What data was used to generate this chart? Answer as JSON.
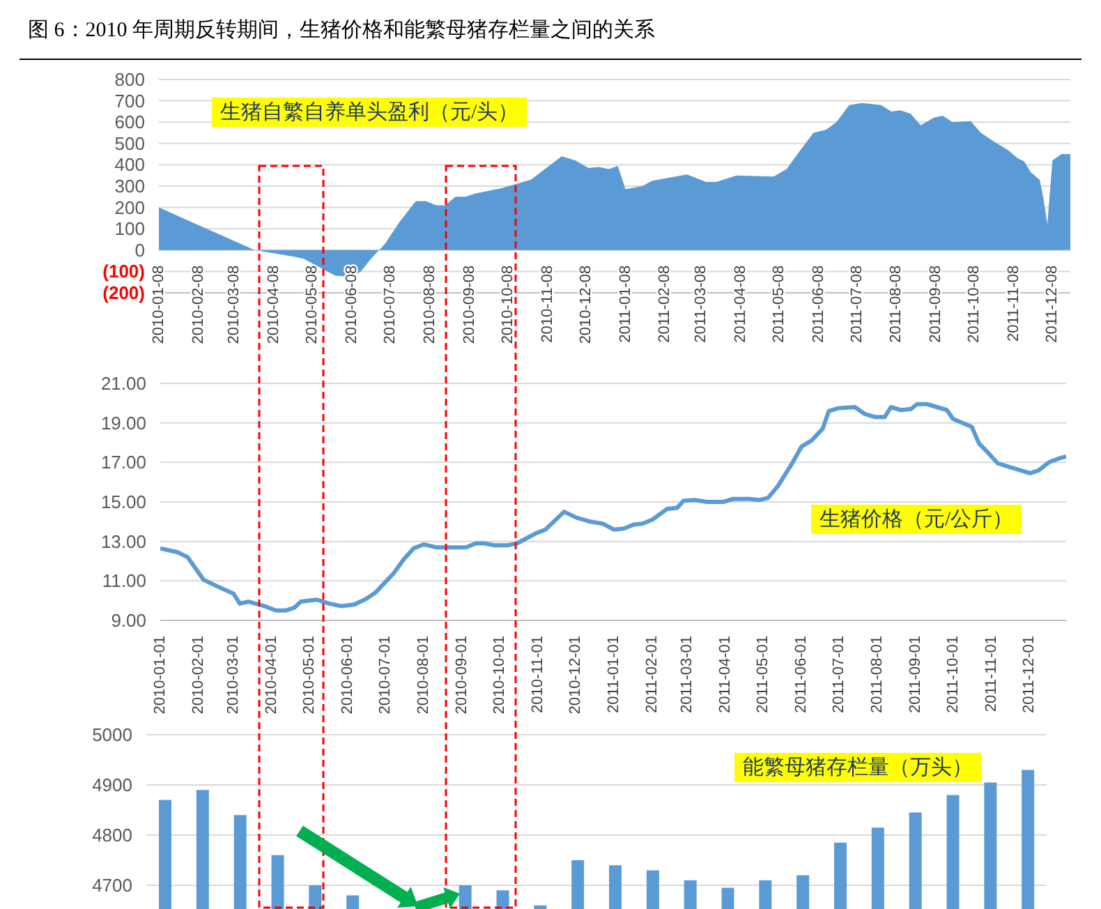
{
  "chart_data": [
    {
      "type": "area",
      "title": "图 6：2010 年周期反转期间，生猪价格和能繁母猪存栏量之间的关系",
      "x": [
        "2010-01-08",
        "2010-03-24",
        "2010-04-23",
        "2010-05-01",
        "2010-05-26",
        "2010-06-07",
        "2010-06-15",
        "2010-06-23",
        "2010-07-04",
        "2010-07-15",
        "2010-07-28",
        "2010-08-05",
        "2010-08-13",
        "2010-08-20",
        "2010-08-28",
        "2010-09-05",
        "2010-09-12",
        "2010-10-03",
        "2010-10-26",
        "2010-11-19",
        "2010-11-30",
        "2010-12-10",
        "2010-12-18",
        "2010-12-26",
        "2011-01-02",
        "2011-01-08",
        "2011-01-21",
        "2011-01-29",
        "2011-02-25",
        "2011-03-12",
        "2011-03-20",
        "2011-04-05",
        "2011-05-04",
        "2011-05-14",
        "2011-05-25",
        "2011-06-04",
        "2011-06-14",
        "2011-06-22",
        "2011-07-02",
        "2011-07-12",
        "2011-07-27",
        "2011-08-04",
        "2011-08-11",
        "2011-08-19",
        "2011-08-27",
        "2011-09-06",
        "2011-09-13",
        "2011-09-21",
        "2011-10-05",
        "2011-10-13",
        "2011-10-23",
        "2011-11-03",
        "2011-11-11",
        "2011-11-16",
        "2011-11-21",
        "2011-11-26",
        "2011-11-28",
        "2011-12-01",
        "2011-12-04",
        "2011-12-08",
        "2011-12-15",
        "2011-12-22"
      ],
      "series": [
        {
          "name": "生猪自繁自养单头盈利（元/头）",
          "color": "#5b9bd5",
          "values": [
            200,
            0,
            -30,
            -40,
            -120,
            -125,
            -100,
            -40,
            30,
            130,
            230,
            230,
            210,
            210,
            250,
            250,
            265,
            290,
            330,
            440,
            420,
            385,
            390,
            380,
            395,
            285,
            300,
            325,
            355,
            320,
            320,
            350,
            345,
            380,
            470,
            550,
            565,
            600,
            680,
            690,
            680,
            650,
            655,
            640,
            585,
            620,
            630,
            600,
            605,
            550,
            510,
            470,
            430,
            415,
            365,
            340,
            330,
            240,
            120,
            420,
            450,
            450
          ]
        }
      ],
      "xlim": [
        "2010-01-08",
        "2011-12-22"
      ],
      "xticks": [
        "2010-01-08",
        "2010-02-08",
        "2010-03-08",
        "2010-04-08",
        "2010-05-08",
        "2010-06-08",
        "2010-07-08",
        "2010-08-08",
        "2010-09-08",
        "2010-10-08",
        "2010-11-08",
        "2010-12-08",
        "2011-01-08",
        "2011-02-08",
        "2011-03-08",
        "2011-04-08",
        "2011-05-08",
        "2011-06-08",
        "2011-07-08",
        "2011-08-08",
        "2011-09-08",
        "2011-10-08",
        "2011-11-08",
        "2011-12-08"
      ],
      "ylim": [
        -200,
        800
      ],
      "yticks": [
        {
          "value": -200,
          "label": "(200)"
        },
        {
          "value": -100,
          "label": "(100)"
        },
        0,
        100,
        200,
        300,
        400,
        500,
        600,
        700,
        800
      ],
      "grid": "y"
    },
    {
      "type": "line",
      "x": [
        "2010-01-01",
        "2010-01-15",
        "2010-01-23",
        "2010-02-05",
        "2010-02-15",
        "2010-03-01",
        "2010-03-06",
        "2010-03-13",
        "2010-03-27",
        "2010-04-04",
        "2010-04-12",
        "2010-04-19",
        "2010-04-24",
        "2010-05-07",
        "2010-05-17",
        "2010-05-27",
        "2010-06-06",
        "2010-06-16",
        "2010-06-23",
        "2010-07-08",
        "2010-07-16",
        "2010-07-24",
        "2010-08-01",
        "2010-08-11",
        "2010-08-19",
        "2010-09-04",
        "2010-09-12",
        "2010-09-19",
        "2010-09-27",
        "2010-10-07",
        "2010-10-15",
        "2010-10-30",
        "2010-11-07",
        "2010-11-22",
        "2010-12-02",
        "2010-12-13",
        "2010-12-23",
        "2011-01-01",
        "2011-01-09",
        "2011-01-17",
        "2011-01-24",
        "2011-02-01",
        "2011-02-13",
        "2011-02-21",
        "2011-02-26",
        "2011-03-07",
        "2011-03-17",
        "2011-03-30",
        "2011-04-07",
        "2011-04-20",
        "2011-04-28",
        "2011-05-05",
        "2011-05-13",
        "2011-05-24",
        "2011-06-01",
        "2011-06-09",
        "2011-06-18",
        "2011-06-23",
        "2011-07-01",
        "2011-07-14",
        "2011-07-22",
        "2011-07-30",
        "2011-08-07",
        "2011-08-12",
        "2011-08-20",
        "2011-08-28",
        "2011-09-02",
        "2011-09-10",
        "2011-09-26",
        "2011-10-01",
        "2011-10-16",
        "2011-10-22",
        "2011-10-29",
        "2011-11-06",
        "2011-11-19",
        "2011-12-02",
        "2011-12-09",
        "2011-12-17",
        "2011-12-25",
        "2011-12-31"
      ],
      "series": [
        {
          "name": "生猪价格（元/公斤）",
          "color": "#5b9bd5",
          "values": [
            12.65,
            12.45,
            12.2,
            11.05,
            10.75,
            10.35,
            9.85,
            9.95,
            9.7,
            9.5,
            9.5,
            9.65,
            9.95,
            10.05,
            9.85,
            9.72,
            9.8,
            10.1,
            10.4,
            11.4,
            12.1,
            12.65,
            12.85,
            12.7,
            12.7,
            12.7,
            12.9,
            12.9,
            12.8,
            12.8,
            12.9,
            13.4,
            13.6,
            14.5,
            14.2,
            14.0,
            13.9,
            13.6,
            13.65,
            13.85,
            13.9,
            14.1,
            14.65,
            14.7,
            15.05,
            15.1,
            15.0,
            15.0,
            15.15,
            15.15,
            15.1,
            15.2,
            15.8,
            16.9,
            17.8,
            18.1,
            18.7,
            19.6,
            19.75,
            19.8,
            19.45,
            19.3,
            19.3,
            19.8,
            19.65,
            19.7,
            19.95,
            19.95,
            19.65,
            19.2,
            18.8,
            17.95,
            17.5,
            16.95,
            16.7,
            16.45,
            16.6,
            17.0,
            17.2,
            17.3
          ]
        }
      ],
      "xlim": [
        "2010-01-01",
        "2011-12-31"
      ],
      "xticks": [
        "2010-01-01",
        "2010-02-01",
        "2010-03-01",
        "2010-04-01",
        "2010-05-01",
        "2010-06-01",
        "2010-07-01",
        "2010-08-01",
        "2010-09-01",
        "2010-10-01",
        "2010-11-01",
        "2010-12-01",
        "2011-01-01",
        "2011-02-01",
        "2011-03-01",
        "2011-04-01",
        "2011-05-01",
        "2011-06-01",
        "2011-07-01",
        "2011-08-01",
        "2011-09-01",
        "2011-10-01",
        "2011-11-01",
        "2011-12-01"
      ],
      "ylim": [
        9,
        21
      ],
      "yticks": [
        {
          "value": 9,
          "label": "9.00"
        },
        {
          "value": 11,
          "label": "11.00"
        },
        {
          "value": 13,
          "label": "13.00"
        },
        {
          "value": 15,
          "label": "15.00"
        },
        {
          "value": 17,
          "label": "17.00"
        },
        {
          "value": 19,
          "label": "19.00"
        },
        {
          "value": 21,
          "label": "21.00"
        }
      ],
      "grid": "y"
    },
    {
      "type": "bar",
      "categories": [
        null,
        null,
        null,
        null,
        null,
        null,
        null,
        null,
        null,
        null,
        null,
        null,
        null,
        null,
        null,
        null,
        null,
        null,
        null,
        null,
        null,
        null,
        null,
        null
      ],
      "series": [
        {
          "name": "能繁母猪存栏量（万头）",
          "color": "#5b9bd5",
          "values": [
            4870,
            4890,
            4840,
            4760,
            4700,
            4680,
            null,
            null,
            4700,
            4690,
            4660,
            4750,
            4740,
            4730,
            4710,
            4695,
            4710,
            4720,
            4785,
            4815,
            4845,
            4880,
            4905,
            4930
          ]
        }
      ],
      "ylim": [
        4650,
        5000
      ],
      "yticks": [
        4700,
        4800,
        4900,
        5000
      ],
      "grid": "y",
      "tick_labels": "y"
    }
  ]
}
